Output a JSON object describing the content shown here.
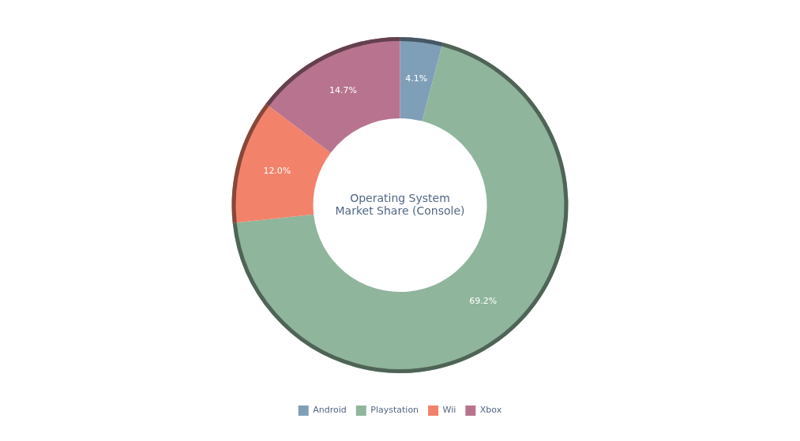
{
  "chart_data": {
    "type": "doughnut",
    "title": "Operating System Market Share (Console)",
    "categories": [
      "Android",
      "Playstation",
      "Wii",
      "Xbox"
    ],
    "values": [
      4.1,
      69.2,
      12.0,
      14.7
    ],
    "value_labels": [
      "4.1%",
      "69.2%",
      "12.0%",
      "14.7%"
    ],
    "colors": [
      "#7f9fb8",
      "#8fb59c",
      "#f3826a",
      "#b8748e"
    ],
    "data_labels": true,
    "legend": "bottom"
  }
}
